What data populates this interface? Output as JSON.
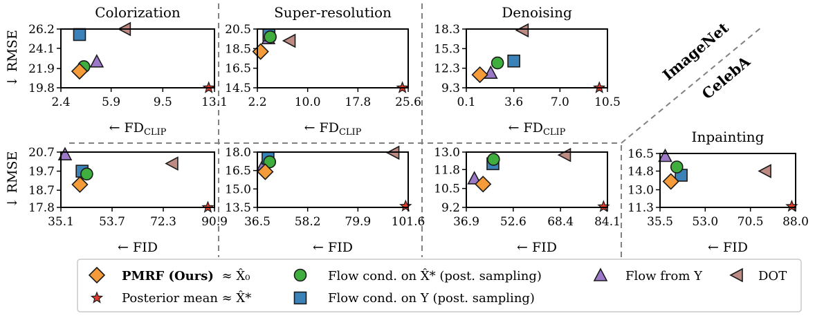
{
  "colors": {
    "pmrf": "#f59b3a",
    "posterior_mean": "#e03c2e",
    "flow_xstar": "#3fae3f",
    "flow_y_post": "#3a82b8",
    "flow_from_y": "#9b79c8",
    "dot": "#bd8b84",
    "edge": "#1a1a1a",
    "divider": "#808080"
  },
  "dataset_labels": {
    "imagenet": "ImageNet",
    "celeba": "CelebA"
  },
  "legend": {
    "pmrf_bold": "PMRF (Ours)",
    "pmrf_rest": "≈ X̂₀",
    "posterior_mean": "Posterior mean ≈ X̂*",
    "flow_xstar": "Flow cond. on X̂* (post. sampling)",
    "flow_y_post": "Flow cond. on Y (post. sampling)",
    "flow_from_y": "Flow from Y",
    "dot": "DOT"
  },
  "chart_data": [
    {
      "type": "scatter",
      "title": "Colorization",
      "xlabel": "← FD_CLIP",
      "ylabel": "↓ RMSE",
      "xlim": [
        2.4,
        13.1
      ],
      "ylim": [
        19.8,
        26.2
      ],
      "xticks": [
        "2.4",
        "5.9",
        "9.5",
        "13.1"
      ],
      "yticks": [
        "19.8",
        "21.9",
        "24.1",
        "26.2"
      ],
      "series": [
        {
          "key": "pmrf",
          "marker": "diamond",
          "x": 3.7,
          "y": 21.6
        },
        {
          "key": "flow_xstar",
          "marker": "circle",
          "x": 4.0,
          "y": 22.1
        },
        {
          "key": "flow_y_post",
          "marker": "square",
          "x": 3.7,
          "y": 25.6
        },
        {
          "key": "flow_from_y",
          "marker": "triangle-up",
          "x": 4.9,
          "y": 22.6
        },
        {
          "key": "dot",
          "marker": "triangle-left",
          "x": 6.9,
          "y": 26.2
        },
        {
          "key": "posterior_mean",
          "marker": "star",
          "x": 12.7,
          "y": 19.8
        }
      ]
    },
    {
      "type": "scatter",
      "title": "Super-resolution",
      "xlabel": "← FD_CLIP",
      "ylabel": "",
      "xlim": [
        2.2,
        25.6
      ],
      "ylim": [
        14.5,
        20.5
      ],
      "xticks": [
        "2.2",
        "10.0",
        "17.8",
        "25.6"
      ],
      "yticks": [
        "14.5",
        "16.5",
        "18.5",
        "20.5"
      ],
      "series": [
        {
          "key": "pmrf",
          "marker": "diamond",
          "x": 2.7,
          "y": 18.2
        },
        {
          "key": "flow_xstar",
          "marker": "circle",
          "x": 4.2,
          "y": 19.7
        },
        {
          "key": "flow_y_post",
          "marker": "square",
          "x": 4.0,
          "y": 19.9
        },
        {
          "key": "flow_from_y",
          "marker": "triangle-up",
          "x": 3.9,
          "y": 19.5
        },
        {
          "key": "dot",
          "marker": "triangle-left",
          "x": 7.3,
          "y": 19.3
        },
        {
          "key": "posterior_mean",
          "marker": "star",
          "x": 24.7,
          "y": 14.5
        }
      ]
    },
    {
      "type": "scatter",
      "title": "Denoising",
      "xlabel": "← FD_CLIP",
      "ylabel": "",
      "xlim": [
        0.1,
        10.5
      ],
      "ylim": [
        9.3,
        18.3
      ],
      "xticks": [
        "0.1",
        "3.6",
        "7.0",
        "10.5"
      ],
      "yticks": [
        "9.3",
        "12.3",
        "15.3",
        "18.3"
      ],
      "series": [
        {
          "key": "pmrf",
          "marker": "diamond",
          "x": 1.1,
          "y": 11.3
        },
        {
          "key": "flow_xstar",
          "marker": "circle",
          "x": 2.4,
          "y": 13.1
        },
        {
          "key": "flow_y_post",
          "marker": "square",
          "x": 3.6,
          "y": 13.4
        },
        {
          "key": "flow_from_y",
          "marker": "triangle-up",
          "x": 1.9,
          "y": 11.5
        },
        {
          "key": "dot",
          "marker": "triangle-left",
          "x": 4.3,
          "y": 18.1
        },
        {
          "key": "posterior_mean",
          "marker": "star",
          "x": 9.9,
          "y": 9.3
        }
      ]
    },
    {
      "type": "scatter",
      "title": "",
      "xlabel": "← FID",
      "ylabel": "↓ RMSE",
      "xlim": [
        35.1,
        90.9
      ],
      "ylim": [
        17.8,
        20.7
      ],
      "xticks": [
        "35.1",
        "53.7",
        "72.3",
        "90.9"
      ],
      "yticks": [
        "17.8",
        "18.7",
        "19.7",
        "20.7"
      ],
      "series": [
        {
          "key": "pmrf",
          "marker": "diamond",
          "x": 42.0,
          "y": 19.0
        },
        {
          "key": "flow_xstar",
          "marker": "circle",
          "x": 44.5,
          "y": 19.55
        },
        {
          "key": "flow_y_post",
          "marker": "square",
          "x": 42.8,
          "y": 19.7
        },
        {
          "key": "flow_from_y",
          "marker": "triangle-up",
          "x": 36.6,
          "y": 20.55
        },
        {
          "key": "dot",
          "marker": "triangle-left",
          "x": 75.8,
          "y": 20.1
        },
        {
          "key": "posterior_mean",
          "marker": "star",
          "x": 88.5,
          "y": 17.8
        }
      ]
    },
    {
      "type": "scatter",
      "title": "",
      "xlabel": "← FID",
      "ylabel": "",
      "xlim": [
        36.5,
        101.6
      ],
      "ylim": [
        13.5,
        18.0
      ],
      "xticks": [
        "36.5",
        "58.2",
        "79.9",
        "101.6"
      ],
      "yticks": [
        "13.5",
        "15.0",
        "16.5",
        "18.0"
      ],
      "series": [
        {
          "key": "pmrf",
          "marker": "diamond",
          "x": 39.9,
          "y": 16.4
        },
        {
          "key": "flow_xstar",
          "marker": "circle",
          "x": 41.8,
          "y": 17.2
        },
        {
          "key": "flow_y_post",
          "marker": "square",
          "x": 41.1,
          "y": 17.5
        },
        {
          "key": "flow_from_y",
          "marker": "triangle-up",
          "x": 39.2,
          "y": 16.95
        },
        {
          "key": "dot",
          "marker": "triangle-left",
          "x": 95.5,
          "y": 17.95
        },
        {
          "key": "posterior_mean",
          "marker": "star",
          "x": 100.5,
          "y": 13.6
        }
      ]
    },
    {
      "type": "scatter",
      "title": "",
      "xlabel": "← FID",
      "ylabel": "",
      "xlim": [
        36.9,
        84.1
      ],
      "ylim": [
        9.2,
        13.0
      ],
      "xticks": [
        "36.9",
        "52.6",
        "68.4",
        "84.1"
      ],
      "yticks": [
        "9.2",
        "10.5",
        "11.8",
        "13.0"
      ],
      "series": [
        {
          "key": "pmrf",
          "marker": "diamond",
          "x": 42.5,
          "y": 10.8
        },
        {
          "key": "flow_xstar",
          "marker": "circle",
          "x": 46.0,
          "y": 12.5
        },
        {
          "key": "flow_y_post",
          "marker": "square",
          "x": 45.8,
          "y": 12.2
        },
        {
          "key": "flow_from_y",
          "marker": "triangle-up",
          "x": 39.6,
          "y": 11.15
        },
        {
          "key": "dot",
          "marker": "triangle-left",
          "x": 70.1,
          "y": 12.8
        },
        {
          "key": "posterior_mean",
          "marker": "star",
          "x": 82.8,
          "y": 9.25
        }
      ]
    },
    {
      "type": "scatter",
      "title": "Inpainting",
      "xlabel": "← FID",
      "ylabel": "",
      "xlim": [
        35.5,
        88.0
      ],
      "ylim": [
        11.3,
        16.5
      ],
      "xticks": [
        "35.5",
        "53.0",
        "70.5",
        "88.0"
      ],
      "yticks": [
        "11.3",
        "13.0",
        "14.8",
        "16.5"
      ],
      "series": [
        {
          "key": "pmrf",
          "marker": "diamond",
          "x": 39.7,
          "y": 13.8
        },
        {
          "key": "flow_xstar",
          "marker": "circle",
          "x": 42.0,
          "y": 15.2
        },
        {
          "key": "flow_y_post",
          "marker": "square",
          "x": 43.7,
          "y": 14.4
        },
        {
          "key": "flow_from_y",
          "marker": "triangle-up",
          "x": 37.5,
          "y": 16.2
        },
        {
          "key": "dot",
          "marker": "triangle-left",
          "x": 76.5,
          "y": 14.8
        },
        {
          "key": "posterior_mean",
          "marker": "star",
          "x": 86.5,
          "y": 11.4
        }
      ]
    }
  ]
}
